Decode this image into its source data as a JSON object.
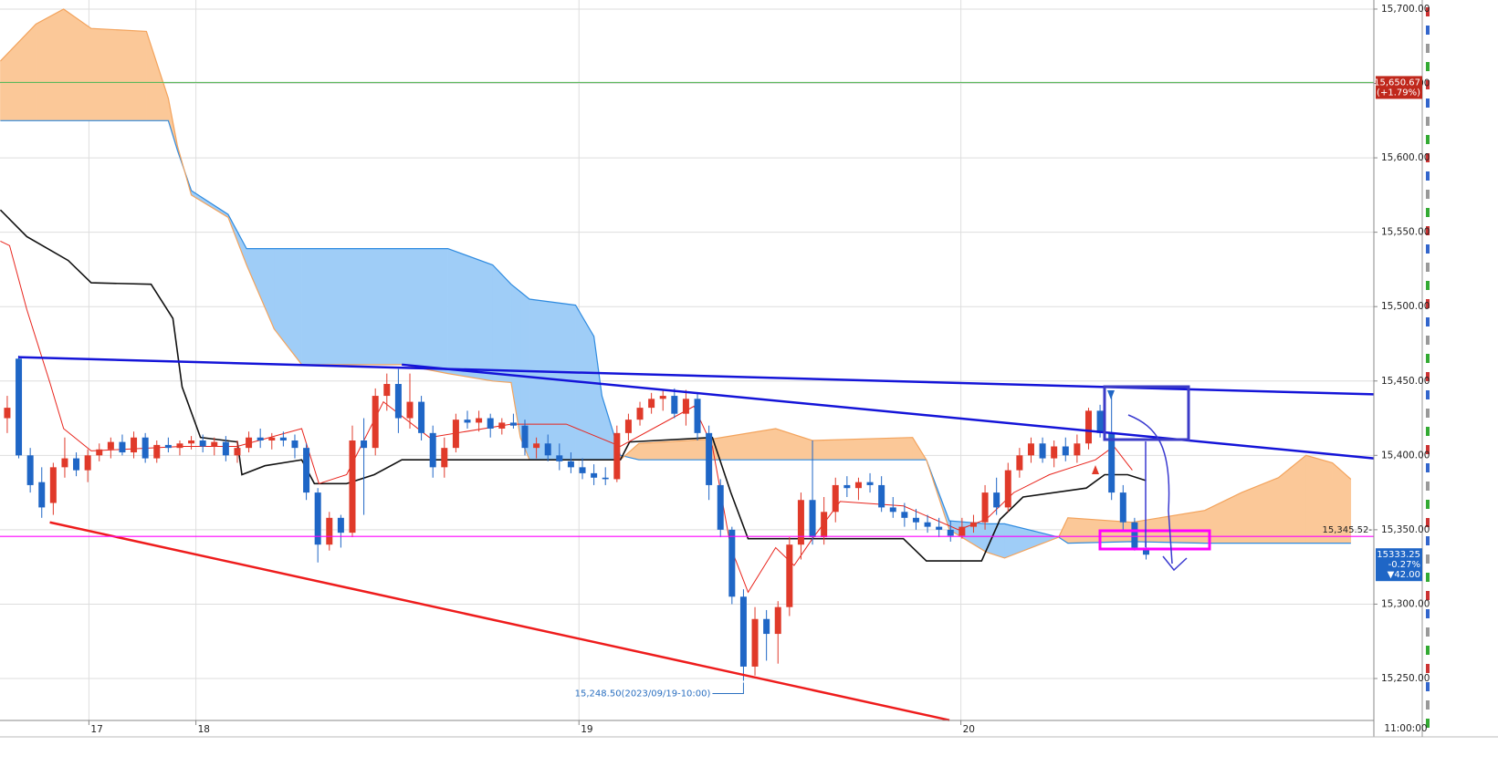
{
  "chart_data": {
    "type": "candlestick",
    "xlim": [
      -0.63,
      118.8
    ],
    "ylim": [
      15221.8,
      15706.1
    ],
    "grid": true,
    "up_color": "#e03a2a",
    "down_color": "#1f66c6",
    "yticks": [
      {
        "value": 15250,
        "label": "15,250.00"
      },
      {
        "value": 15300,
        "label": "15,300.00"
      },
      {
        "value": 15350,
        "label": "15,350.00"
      },
      {
        "value": 15400,
        "label": "15,400.00"
      },
      {
        "value": 15450,
        "label": "15,450.00"
      },
      {
        "value": 15500,
        "label": "15,500.00"
      },
      {
        "value": 15550,
        "label": "15,550.00"
      },
      {
        "value": 15600,
        "label": "15,600.00"
      },
      {
        "value": 15650,
        "label": "15,650.00"
      },
      {
        "value": 15700,
        "label": "15,700.00"
      }
    ],
    "xticks": [
      {
        "value": 7.1,
        "label": "17"
      },
      {
        "value": 16.4,
        "label": "18"
      },
      {
        "value": 49.7,
        "label": "19"
      },
      {
        "value": 82.9,
        "label": "20"
      }
    ],
    "time_label": "11:00:00",
    "x": [
      0,
      1,
      2,
      3,
      4,
      5,
      6,
      7,
      8,
      9,
      10,
      11,
      12,
      13,
      14,
      15,
      16,
      17,
      18,
      19,
      20,
      21,
      22,
      23,
      24,
      25,
      26,
      27,
      28,
      29,
      30,
      31,
      32,
      33,
      34,
      35,
      36,
      37,
      38,
      39,
      40,
      41,
      42,
      43,
      44,
      45,
      46,
      47,
      48,
      49,
      50,
      51,
      52,
      53,
      54,
      55,
      56,
      57,
      58,
      59,
      60,
      61,
      62,
      63,
      64,
      65,
      66,
      67,
      68,
      69,
      70,
      71,
      72,
      73,
      74,
      75,
      76,
      77,
      78,
      79,
      80,
      81,
      82,
      83,
      84,
      85,
      86,
      87,
      88,
      89,
      90,
      91,
      92,
      93,
      94,
      95,
      96,
      97,
      98,
      99
    ],
    "open": [
      15425,
      15465,
      15400,
      15382,
      15368,
      15392,
      15398,
      15390,
      15400,
      15404,
      15409,
      15402,
      15412,
      15398,
      15407,
      15405,
      15408,
      15410,
      15406,
      15409,
      15400,
      15405,
      15412,
      15410,
      15412,
      15410,
      15405,
      15375,
      15340,
      15358,
      15348,
      15410,
      15405,
      15440,
      15448,
      15425,
      15436,
      15415,
      15392,
      15405,
      15424,
      15422,
      15425,
      15418,
      15422,
      15420,
      15405,
      15408,
      15400,
      15396,
      15392,
      15388,
      15385,
      15384,
      15415,
      15424,
      15432,
      15438,
      15440,
      15428,
      15438,
      15415,
      15380,
      15350,
      15305,
      15258,
      15290,
      15280,
      15298,
      15340,
      15370,
      15345,
      15362,
      15380,
      15378,
      15382,
      15380,
      15365,
      15362,
      15358,
      15355,
      15352,
      15350,
      15346,
      15352,
      15355,
      15375,
      15365,
      15390,
      15400,
      15408,
      15398,
      15406,
      15400,
      15408,
      15430,
      15415,
      15375,
      15355,
      15338
    ],
    "high": [
      15440,
      15467,
      15405,
      15392,
      15395,
      15412,
      15402,
      15404,
      15408,
      15412,
      15414,
      15416,
      15415,
      15410,
      15412,
      15410,
      15413,
      15414,
      15412,
      15413,
      15410,
      15416,
      15418,
      15415,
      15416,
      15414,
      15408,
      15378,
      15362,
      15360,
      15420,
      15425,
      15445,
      15455,
      15458,
      15455,
      15440,
      15420,
      15412,
      15428,
      15430,
      15430,
      15428,
      15425,
      15428,
      15424,
      15412,
      15414,
      15408,
      15402,
      15398,
      15394,
      15392,
      15420,
      15428,
      15436,
      15442,
      15444,
      15445,
      15444,
      15442,
      15420,
      15384,
      15352,
      15310,
      15298,
      15296,
      15302,
      15345,
      15375,
      15410,
      15372,
      15385,
      15386,
      15385,
      15388,
      15386,
      15372,
      15368,
      15364,
      15360,
      15358,
      15356,
      15358,
      15360,
      15380,
      15385,
      15395,
      15405,
      15412,
      15412,
      15410,
      15412,
      15414,
      15432,
      15434,
      15440,
      15380,
      15358,
      15342
    ],
    "low": [
      15415,
      15398,
      15375,
      15358,
      15360,
      15385,
      15386,
      15382,
      15396,
      15398,
      15400,
      15398,
      15395,
      15395,
      15402,
      15400,
      15404,
      15402,
      15400,
      15396,
      15395,
      15402,
      15405,
      15404,
      15406,
      15398,
      15370,
      15328,
      15336,
      15338,
      15345,
      15360,
      15400,
      15430,
      15415,
      15418,
      15410,
      15385,
      15385,
      15402,
      15418,
      15416,
      15412,
      15414,
      15418,
      15400,
      15398,
      15396,
      15390,
      15388,
      15384,
      15380,
      15380,
      15382,
      15410,
      15420,
      15428,
      15430,
      15425,
      15420,
      15410,
      15370,
      15345,
      15300,
      15248.5,
      15252,
      15262,
      15260,
      15292,
      15330,
      15340,
      15340,
      15355,
      15372,
      15370,
      15375,
      15362,
      15358,
      15352,
      15350,
      15348,
      15345,
      15342,
      15344,
      15348,
      15350,
      15360,
      15362,
      15385,
      15395,
      15395,
      15392,
      15396,
      15395,
      15404,
      15412,
      15370,
      15350,
      15336,
      15330
    ],
    "close": [
      15432,
      15400,
      15380,
      15365,
      15392,
      15398,
      15390,
      15400,
      15404,
      15409,
      15402,
      15412,
      15398,
      15407,
      15405,
      15408,
      15410,
      15406,
      15409,
      15400,
      15405,
      15412,
      15410,
      15412,
      15410,
      15405,
      15375,
      15340,
      15358,
      15348,
      15410,
      15405,
      15440,
      15448,
      15425,
      15436,
      15415,
      15392,
      15405,
      15424,
      15422,
      15425,
      15418,
      15422,
      15420,
      15405,
      15408,
      15400,
      15396,
      15392,
      15388,
      15385,
      15384,
      15415,
      15424,
      15432,
      15438,
      15440,
      15428,
      15438,
      15415,
      15380,
      15350,
      15305,
      15258,
      15290,
      15280,
      15298,
      15340,
      15370,
      15345,
      15362,
      15380,
      15378,
      15382,
      15380,
      15365,
      15362,
      15358,
      15355,
      15352,
      15350,
      15346,
      15352,
      15355,
      15375,
      15365,
      15390,
      15400,
      15408,
      15398,
      15406,
      15400,
      15408,
      15430,
      15415,
      15375,
      15355,
      15338,
      15333.25
    ],
    "cloud": {
      "up_color": "#9fcdf7",
      "down_color": "#fbc898",
      "line_a_color": "#2f8be0",
      "line_b_color": "#f3a35c",
      "x": [
        -0.6,
        2.5,
        4.9,
        7.3,
        12.1,
        14.0,
        14.8,
        16.0,
        19.2,
        20.8,
        23.2,
        25.6,
        34.3,
        38.3,
        42.2,
        43.8,
        44.6,
        45.4,
        49.4,
        51.0,
        51.7,
        53.3,
        54.9,
        61.3,
        66.8,
        70.0,
        78.7,
        79.9,
        81.9,
        85.1,
        86.7,
        91.4,
        92.2,
        97.8,
        104.1,
        107.3,
        110.5,
        112.9,
        115.2,
        116.8
      ],
      "span_a": [
        15625,
        15625,
        15625,
        15625,
        15625,
        15625,
        15605,
        15578,
        15562,
        15539,
        15539,
        15539,
        15539,
        15539,
        15528,
        15515,
        15510,
        15505,
        15501,
        15480,
        15440,
        15400,
        15397,
        15397,
        15397,
        15397,
        15397,
        15397,
        15356,
        15354,
        15354,
        15345,
        15341,
        15342,
        15341,
        15341,
        15341,
        15341,
        15341,
        15341
      ],
      "span_b": [
        15665,
        15690,
        15700,
        15687,
        15685,
        15640,
        15608,
        15575,
        15560,
        15528,
        15485,
        15461,
        15461,
        15455,
        15450,
        15449,
        15412,
        15397,
        15397,
        15397,
        15397,
        15397,
        15408,
        15411,
        15418,
        15410,
        15412,
        15397,
        15350,
        15335,
        15331,
        15345,
        15358,
        15355,
        15363,
        15375,
        15385,
        15400,
        15395,
        15384
      ]
    },
    "lines": [
      {
        "color": "#111111",
        "width": 1.6,
        "x": [
          -0.6,
          1.7,
          5.3,
          7.3,
          12.5,
          14.4,
          15.2,
          16.8,
          20.0,
          20.4,
          22.4,
          25.6,
          26.7,
          29.5,
          31.9,
          34.3,
          53.3,
          54.1,
          61.3,
          62.9,
          64.4,
          77.9,
          79.9,
          84.7,
          86.3,
          88.3,
          93.8,
          95.4,
          97.4,
          99.0
        ],
        "values": [
          15565,
          15547,
          15531,
          15516,
          15515,
          15492,
          15446,
          15412,
          15409,
          15387,
          15393,
          15397,
          15381,
          15381,
          15387,
          15397,
          15397,
          15409,
          15412,
          15375,
          15344,
          15344,
          15329,
          15329,
          15357,
          15372,
          15378,
          15387,
          15387,
          15383
        ]
      },
      {
        "color": "#e8231b",
        "width": 1,
        "x": [
          -0.6,
          0.2,
          1.7,
          3.7,
          4.9,
          7.3,
          15.2,
          20.0,
          25.6,
          27.1,
          29.5,
          32.7,
          36.7,
          43.8,
          48.6,
          53.3,
          59.7,
          61.3,
          62.9,
          64.4,
          66.8,
          68.4,
          70.0,
          72.4,
          77.9,
          82.7,
          85.1,
          87.5,
          90.6,
          93.0,
          94.6,
          96.2,
          97.8
        ],
        "values": [
          15544,
          15541,
          15498,
          15449,
          15418,
          15403,
          15406,
          15406,
          15418,
          15381,
          15387,
          15436,
          15412,
          15421,
          15421,
          15406,
          15433,
          15406,
          15338,
          15308,
          15338,
          15326,
          15344,
          15369,
          15366,
          15350,
          15357,
          15375,
          15387,
          15393,
          15397,
          15406,
          15390
        ]
      }
    ],
    "trendlines": [
      {
        "color": "#1414d8",
        "x": [
          0.95,
          118.8
        ],
        "values": [
          15466,
          15441
        ]
      },
      {
        "color": "#1414d8",
        "x": [
          34.3,
          118.8
        ],
        "values": [
          15461,
          15398
        ]
      },
      {
        "color": "#ee1c1c",
        "x": [
          3.7,
          81.9
        ],
        "values": [
          15355,
          15222
        ]
      }
    ],
    "hlines": [
      {
        "value": 15650.67,
        "color": "#5cb85c"
      },
      {
        "value": 15345.52,
        "color": "#ff00ff"
      }
    ],
    "level_label": {
      "value": 15345.52,
      "text": "15,345.52-"
    },
    "price_markers": [
      {
        "value": 15650.67,
        "color": "#c0281c",
        "lines": [
          "15,650.67",
          "(+1.79%)"
        ]
      },
      {
        "value": 15333.25,
        "color": "#1f66c6",
        "lines": [
          "15333.25",
          "-0.27%",
          "▼42.00"
        ]
      }
    ],
    "low_note": {
      "index": 64,
      "value": 15248.5,
      "text": "15,248.50(2023/09/19-10:00)"
    }
  }
}
